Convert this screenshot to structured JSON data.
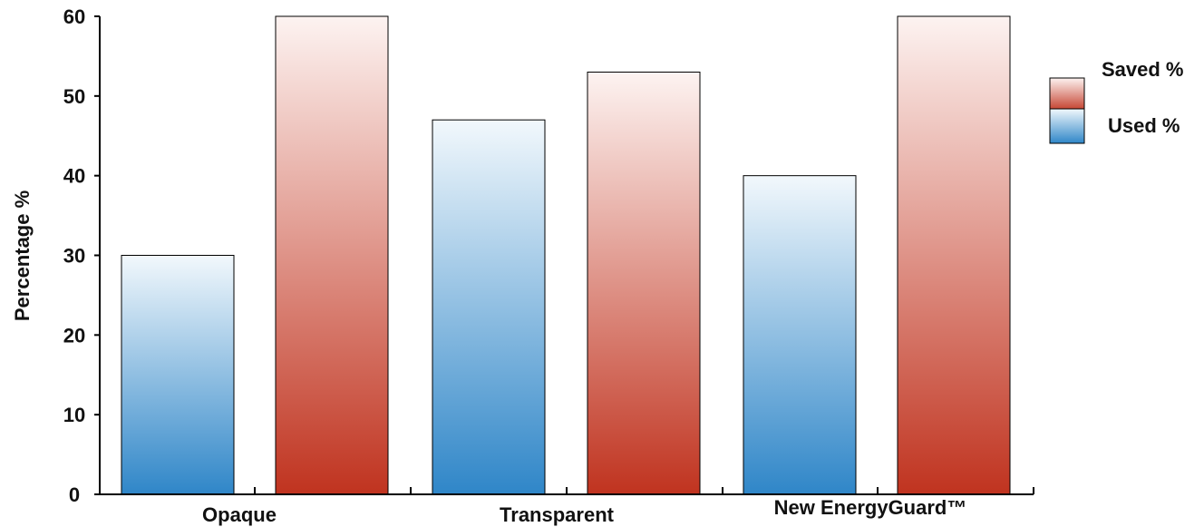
{
  "chart_data": {
    "type": "bar",
    "categories": [
      "Opaque",
      "Transparent",
      "New EnergyGuard™"
    ],
    "series": [
      {
        "name": "Used %",
        "values": [
          30,
          47,
          40
        ],
        "color_top": "#f2f8fc",
        "color_bottom": "#2f86c8"
      },
      {
        "name": "Saved %",
        "values": [
          60,
          53,
          60
        ],
        "color_top": "#fdf3f1",
        "color_bottom": "#c0331f"
      }
    ],
    "title": "",
    "xlabel": "",
    "ylabel": "Percentage %",
    "ylim": [
      0,
      60
    ],
    "yticks": [
      0,
      10,
      20,
      30,
      40,
      50,
      60
    ],
    "grid": false,
    "legend_position": "right",
    "legend_order": [
      "Saved %",
      "Used %"
    ]
  }
}
